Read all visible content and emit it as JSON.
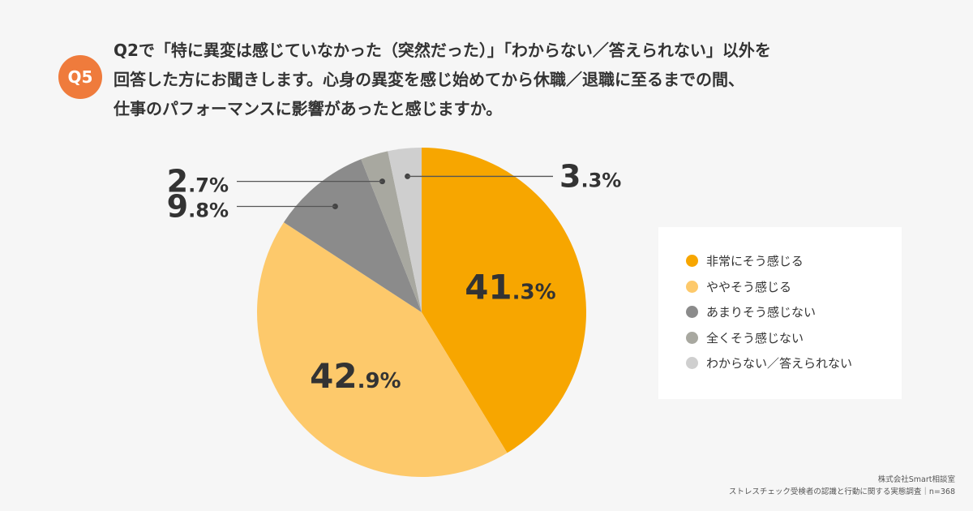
{
  "question": {
    "badge": "Q5",
    "lines": [
      "Q2で「特に異変は感じていなかった（突然だった）」「わからない／答えられない」以外を",
      "回答した方にお聞きします。心身の異変を感じ始めてから休職／退職に至るまでの間、",
      "仕事のパフォーマンスに影響があったと感じますか。"
    ]
  },
  "chart_data": {
    "type": "pie",
    "start": "12 o'clock, clockwise",
    "slices": [
      {
        "label": "非常にそう感じる",
        "value": 41.3,
        "color": "#f7a600",
        "int": "41",
        "dec": ".3%",
        "label_place": "inside"
      },
      {
        "label": "ややそう感じる",
        "value": 42.9,
        "color": "#fdc96b",
        "int": "42",
        "dec": ".9%",
        "label_place": "inside"
      },
      {
        "label": "あまりそう感じない",
        "value": 9.8,
        "color": "#8b8b8b",
        "int": "9",
        "dec": ".8%",
        "label_place": "left"
      },
      {
        "label": "全くそう感じない",
        "value": 2.7,
        "color": "#a8a8a0",
        "int": "2",
        "dec": ".7%",
        "label_place": "left"
      },
      {
        "label": "わからない／答えられない",
        "value": 3.3,
        "color": "#cfcfcf",
        "int": "3",
        "dec": ".3%",
        "label_place": "right"
      }
    ]
  },
  "footer": {
    "line1": "株式会社Smart相談室",
    "line2": "ストレスチェック受検者の認識と行動に関する実態調査｜n=368"
  }
}
